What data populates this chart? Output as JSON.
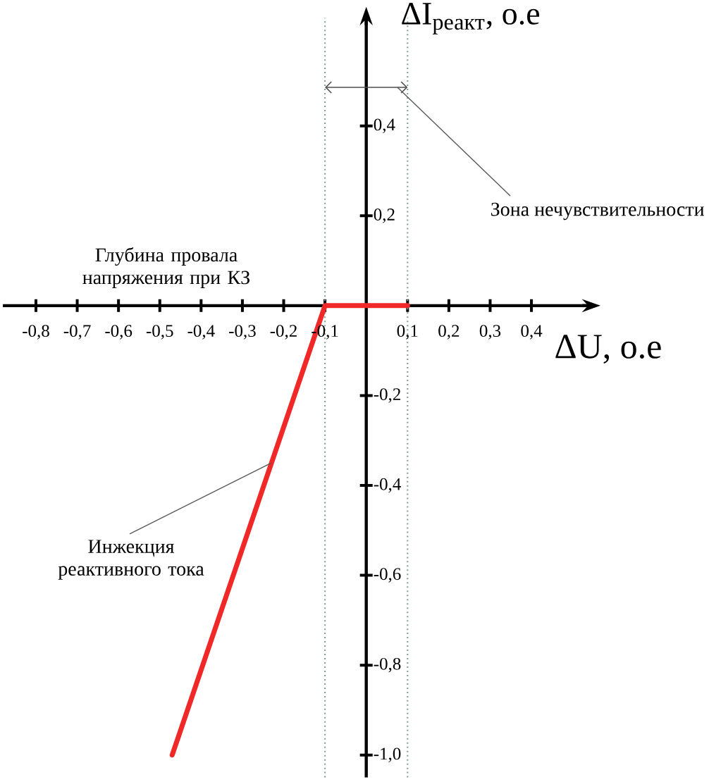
{
  "chart_data": {
    "type": "line",
    "xlabel": "ΔU, о.е",
    "ylabel": "ΔI$_{реакт}$, о.е",
    "annotations": [
      "Зона нечувствительности",
      "Глубина провала напряжения при КЗ",
      {
        "text": "Инжекция реактивного тока",
        "x": -0.23,
        "y": -0.35
      }
    ],
    "x": [
      -0.47,
      -0.1,
      0.1
    ],
    "values": [
      -1.0,
      0,
      0
    ],
    "color": "#f02828",
    "xlim": [
      -0.88,
      0.54
    ],
    "ylim": [
      -1.05,
      0.64
    ],
    "xticks": [
      {
        "value": -0.8,
        "label": "-0,8"
      },
      {
        "value": -0.7,
        "label": "-0,7"
      },
      {
        "value": -0.6,
        "label": "-0,6"
      },
      {
        "value": -0.5,
        "label": "-0,5"
      },
      {
        "value": -0.4,
        "label": "-0,4"
      },
      {
        "value": -0.3,
        "label": "-0,3"
      },
      {
        "value": -0.2,
        "label": "-0,2"
      },
      {
        "value": -0.1,
        "label": "-0,1"
      },
      {
        "value": 0.1,
        "label": "0,1"
      },
      {
        "value": 0.2,
        "label": "0,2"
      },
      {
        "value": 0.3,
        "label": "0,3"
      },
      {
        "value": 0.4,
        "label": "0,4"
      }
    ],
    "yticks": [
      {
        "value": -1.0,
        "label": "-1,0"
      },
      {
        "value": -0.8,
        "label": "-0,8"
      },
      {
        "value": -0.6,
        "label": "-0,6"
      },
      {
        "value": -0.4,
        "label": "-0,4"
      },
      {
        "value": -0.2,
        "label": "-0,2"
      },
      {
        "value": 0.2,
        "label": "0,2"
      },
      {
        "value": 0.4,
        "label": "0,4"
      }
    ],
    "ref_lines": [
      {
        "axis": "x",
        "value": -0.1,
        "color": "#7f9a8f",
        "line_style": "dotted"
      },
      {
        "axis": "x",
        "value": 0.1,
        "color": "#7f9a8f",
        "line_style": "dotted"
      }
    ]
  }
}
